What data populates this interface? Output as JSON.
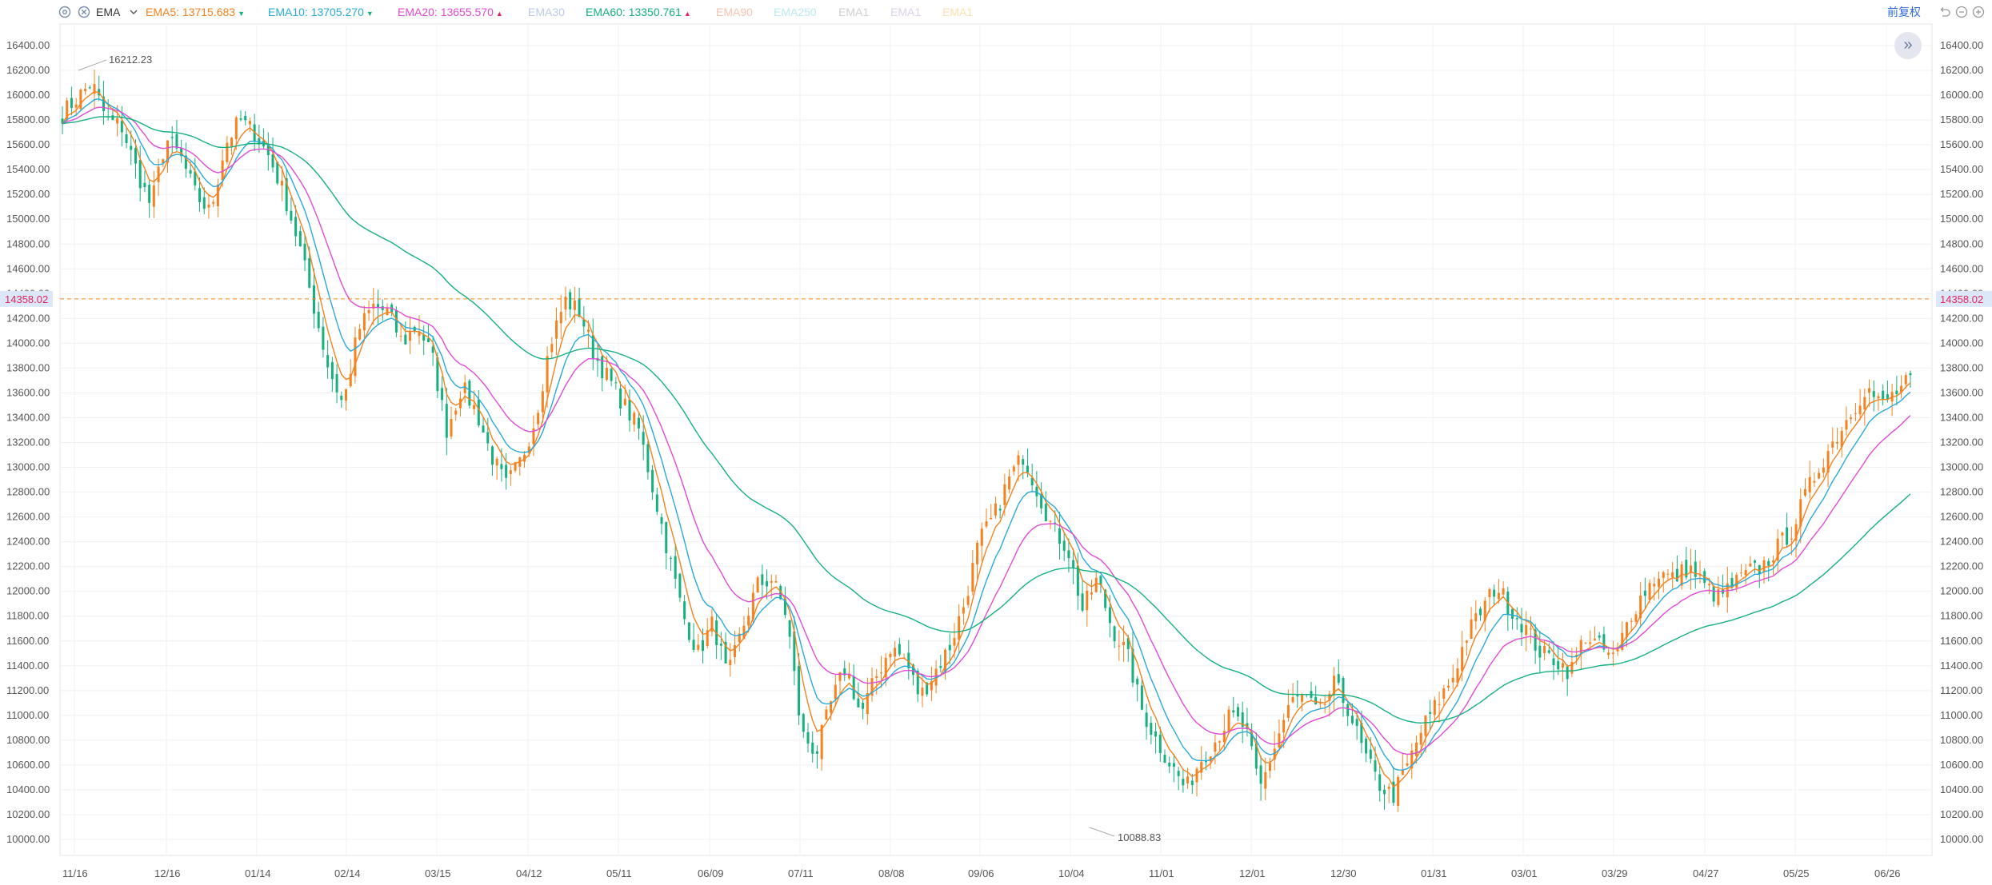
{
  "toolbar": {
    "indicator": "EMA",
    "emas": [
      {
        "label": "EMA5:",
        "value": "13715.683",
        "color": "#f5821f",
        "arrow": "down"
      },
      {
        "label": "EMA10:",
        "value": "13705.270",
        "color": "#2aa9d9",
        "arrow": "down"
      },
      {
        "label": "EMA20:",
        "value": "13655.570",
        "color": "#e04bd6",
        "arrow": "up"
      },
      {
        "label": "EMA30",
        "value": "",
        "color": "#b9c9ec",
        "arrow": ""
      },
      {
        "label": "EMA60:",
        "value": "13350.761",
        "color": "#16b07e",
        "arrow": "up"
      },
      {
        "label": "EMA90",
        "value": "",
        "color": "#f9c2b0",
        "arrow": ""
      },
      {
        "label": "EMA250",
        "value": "",
        "color": "#b9eaf2",
        "arrow": ""
      },
      {
        "label": "EMA1",
        "value": "",
        "color": "#d0d0d0",
        "arrow": ""
      },
      {
        "label": "EMA1",
        "value": "",
        "color": "#dcd0ee",
        "arrow": ""
      },
      {
        "label": "EMA1",
        "value": "",
        "color": "#fbe0b0",
        "arrow": ""
      }
    ],
    "adjust_label": "前复权",
    "icons": [
      "settings-icon",
      "close-icon",
      "chevron-down-icon",
      "undo-icon",
      "zoom-out-icon",
      "zoom-in-icon"
    ]
  },
  "chart_data": {
    "type": "candlestick",
    "ylim": [
      9900,
      16500
    ],
    "yticks": [
      10000,
      10200,
      10400,
      10600,
      10800,
      11000,
      11200,
      11400,
      11600,
      11800,
      12000,
      12200,
      12400,
      12600,
      12800,
      13000,
      13200,
      13400,
      13600,
      13800,
      14000,
      14200,
      14400,
      14600,
      14800,
      15000,
      15200,
      15400,
      15600,
      15800,
      16000,
      16200,
      16400
    ],
    "ytick_labels": [
      "10000.00",
      "10200.00",
      "10400.00",
      "10600.00",
      "10800.00",
      "11000.00",
      "11200.00",
      "11400.00",
      "11600.00",
      "11800.00",
      "12000.00",
      "12200.00",
      "12400.00",
      "12600.00",
      "12800.00",
      "13000.00",
      "13200.00",
      "13400.00",
      "13600.00",
      "13800.00",
      "14000.00",
      "14200.00",
      "14400.00",
      "14600.00",
      "14800.00",
      "15000.00",
      "15200.00",
      "15400.00",
      "15600.00",
      "15800.00",
      "16000.00",
      "16200.00",
      "16400.00"
    ],
    "xtick_labels": [
      "11/16",
      "12/16",
      "01/14",
      "02/14",
      "03/15",
      "04/12",
      "05/11",
      "06/09",
      "07/11",
      "08/08",
      "09/06",
      "10/04",
      "11/01",
      "12/01",
      "12/30",
      "01/31",
      "03/01",
      "03/29",
      "04/27",
      "05/25",
      "06/26"
    ],
    "current_price": "14358.02",
    "max_annotation": "16212.23",
    "min_annotation": "10088.83",
    "up_color": "#f5821f",
    "down_color": "#16b07e",
    "close_path": [
      15850,
      15980,
      16100,
      15800,
      15750,
      15400,
      15100,
      15650,
      15500,
      15200,
      15050,
      15600,
      15800,
      15700,
      15500,
      15200,
      14800,
      14300,
      13800,
      13500,
      14100,
      14300,
      14250,
      14000,
      14150,
      13900,
      13300,
      13650,
      13450,
      13100,
      12850,
      13050,
      13400,
      14000,
      14350,
      14250,
      13900,
      13700,
      13500,
      13300,
      12800,
      12300,
      11800,
      11500,
      11750,
      11300,
      11700,
      12050,
      12100,
      11800,
      10850,
      10700,
      11100,
      11400,
      11000,
      11300,
      11550,
      11450,
      11150,
      11350,
      11550,
      11900,
      12400,
      12600,
      12900,
      13100,
      12800,
      12500,
      12350,
      11850,
      12100,
      11700,
      11500,
      11050,
      10800,
      10600,
      10400,
      10650,
      10800,
      11000,
      10900,
      10400,
      10750,
      11100,
      11150,
      11000,
      11250,
      11050,
      10700,
      10450,
      10350,
      10600,
      10900,
      11100,
      11300,
      11650,
      11850,
      12050,
      11850,
      11700,
      11500,
      11450,
      11350,
      11650,
      11550,
      11450,
      11800,
      12000,
      12150,
      12100,
      12200,
      12050,
      11950,
      12050,
      12150,
      12200,
      12350,
      12500,
      12800,
      13050,
      13250,
      13450,
      13650,
      13500,
      13600,
      13700
    ]
  }
}
